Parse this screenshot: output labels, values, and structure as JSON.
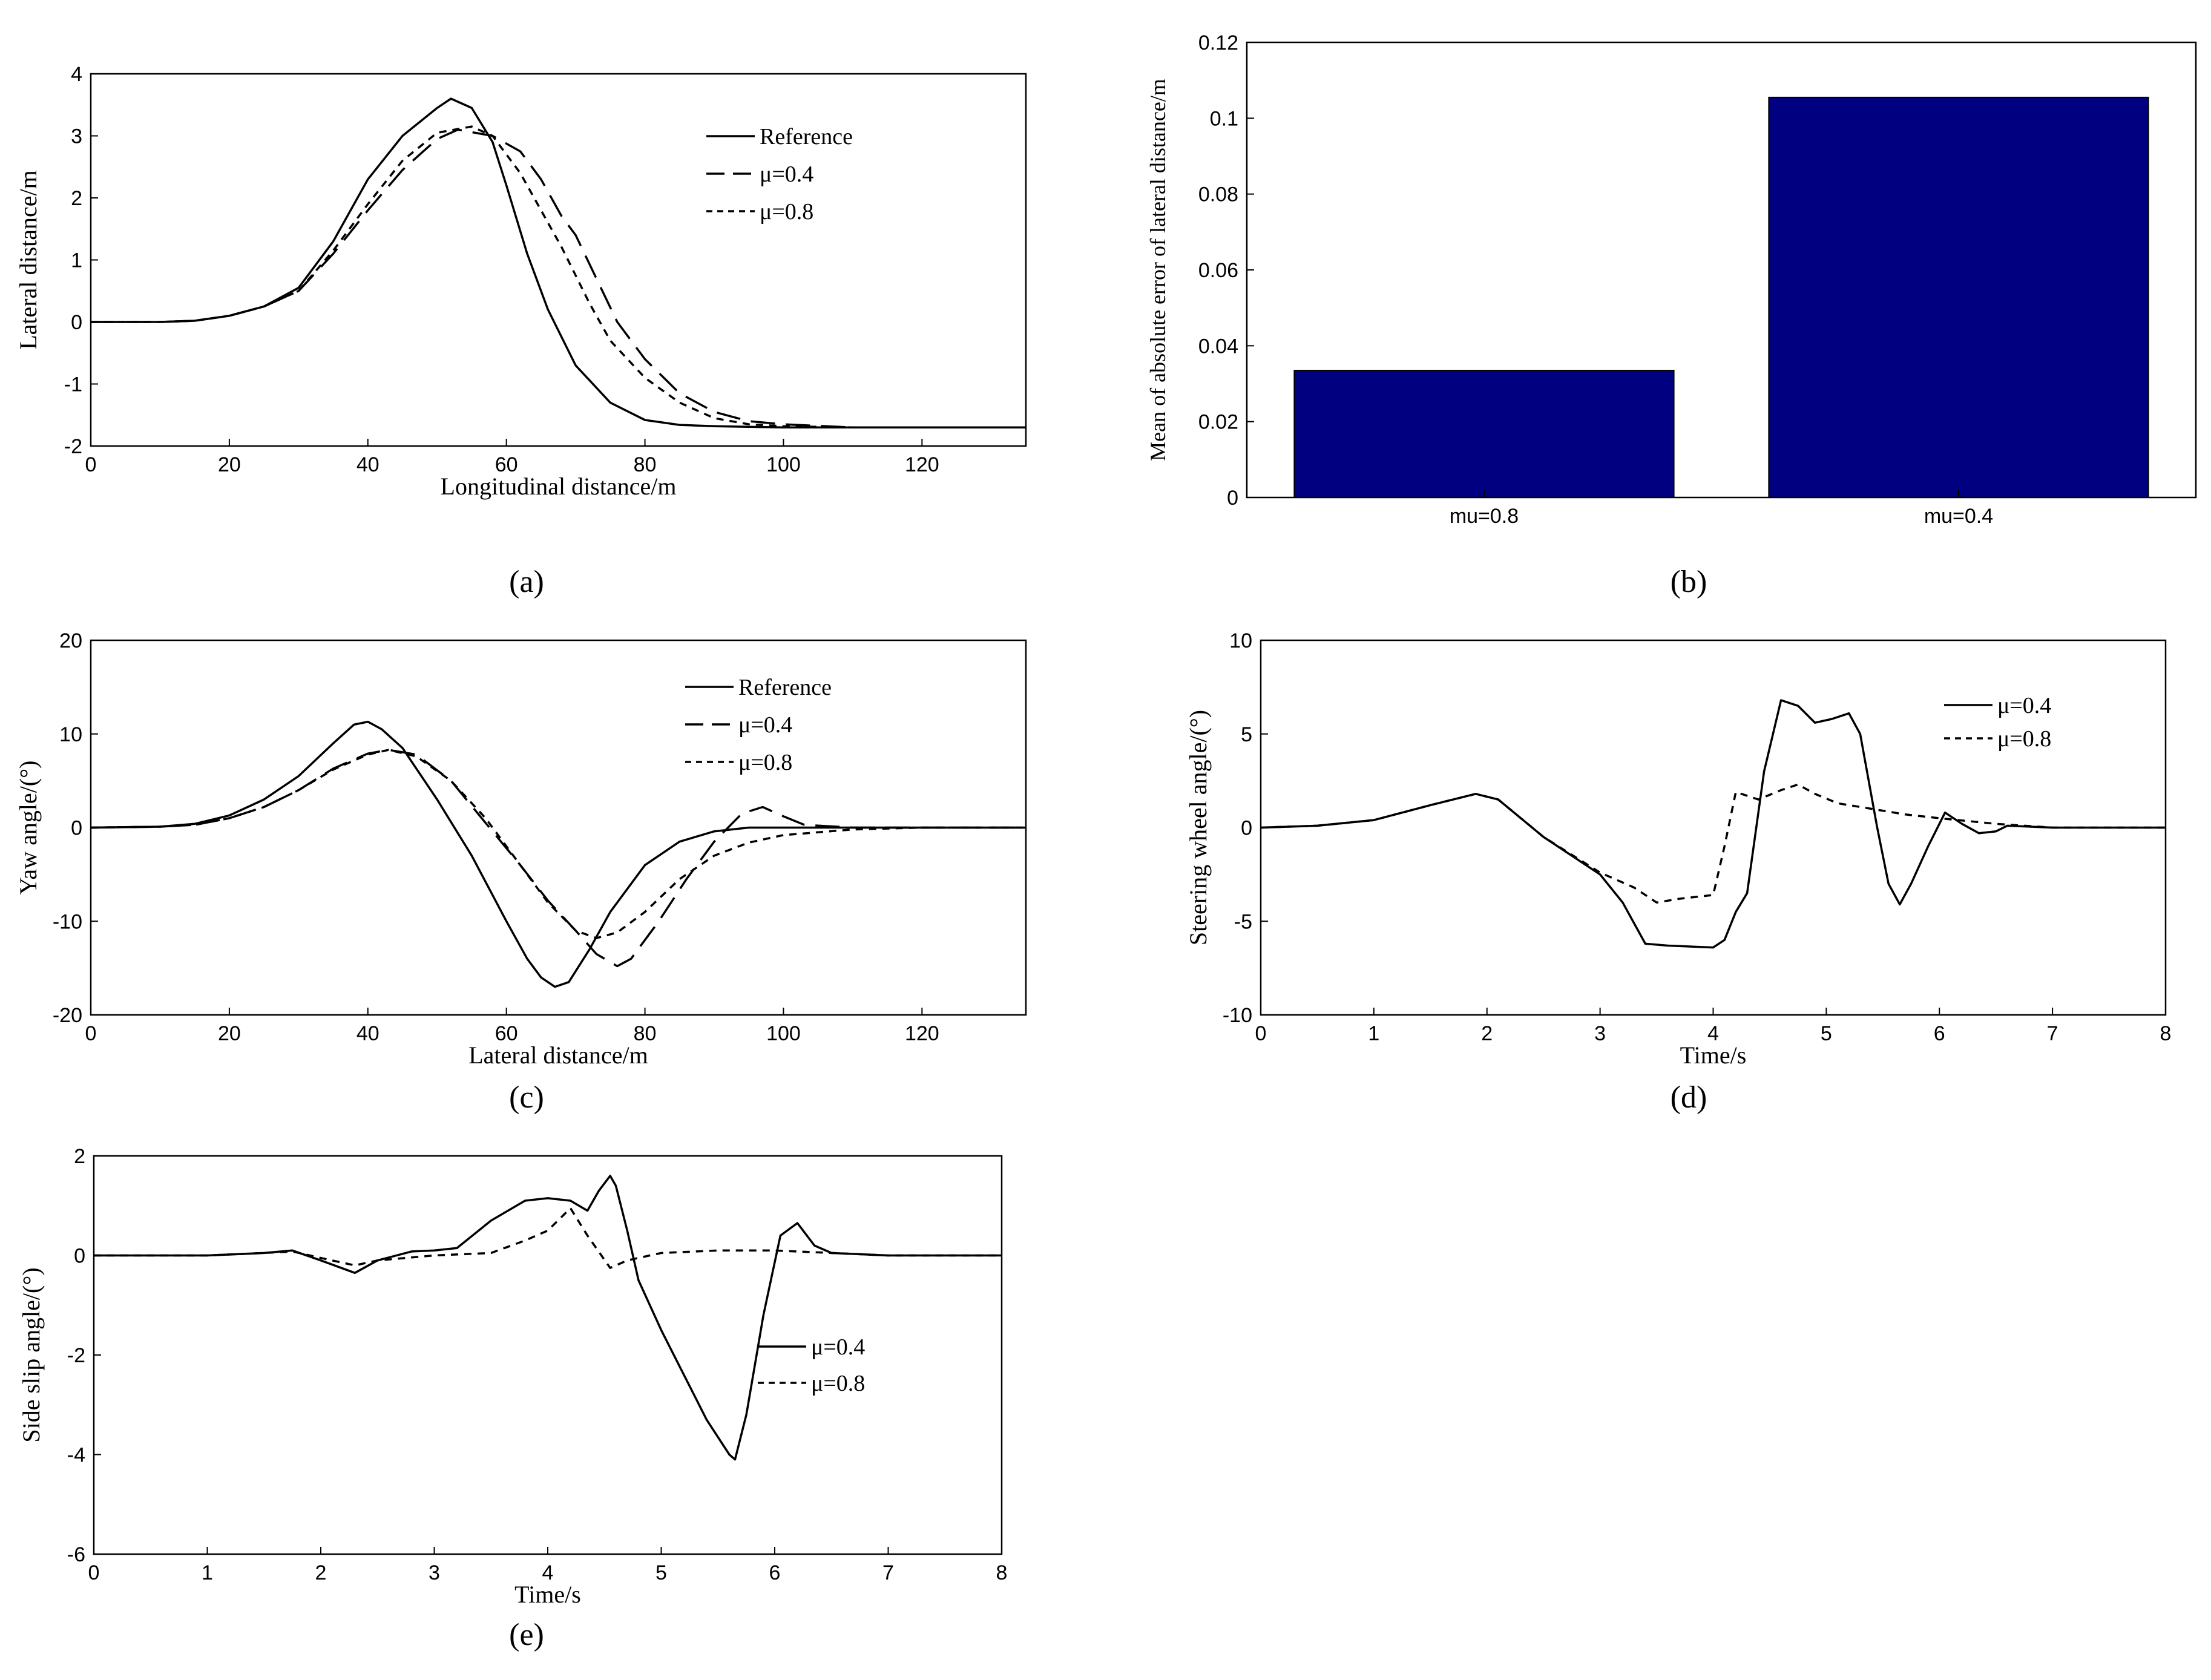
{
  "chart_data": [
    {
      "panel_label": "(a)",
      "type": "line",
      "xlabel": "Longitudinal distance/m",
      "ylabel": "Lateral distance/m",
      "xlim": [
        0,
        135
      ],
      "ylim": [
        -2,
        4
      ],
      "xticks": [
        0,
        20,
        40,
        60,
        80,
        100,
        120
      ],
      "yticks": [
        -2,
        -1,
        0,
        1,
        2,
        3,
        4
      ],
      "legend_position": "top-right",
      "series": [
        {
          "name": "Reference",
          "style": "solid",
          "x": [
            0,
            10,
            15,
            20,
            25,
            30,
            35,
            40,
            45,
            50,
            52,
            55,
            58,
            60,
            63,
            66,
            70,
            75,
            80,
            85,
            90,
            100,
            110,
            135
          ],
          "y": [
            0,
            0,
            0.02,
            0.1,
            0.25,
            0.55,
            1.3,
            2.3,
            3.0,
            3.45,
            3.6,
            3.45,
            2.9,
            2.2,
            1.1,
            0.2,
            -0.7,
            -1.3,
            -1.58,
            -1.66,
            -1.68,
            -1.7,
            -1.7,
            -1.7
          ]
        },
        {
          "name": "μ=0.4",
          "style": "dashed",
          "x": [
            0,
            10,
            15,
            20,
            25,
            30,
            35,
            40,
            45,
            50,
            53,
            58,
            62,
            65,
            68,
            70,
            73,
            76,
            80,
            85,
            90,
            95,
            100,
            110,
            135
          ],
          "y": [
            0,
            0,
            0.02,
            0.1,
            0.25,
            0.5,
            1.1,
            1.8,
            2.45,
            2.95,
            3.1,
            3.0,
            2.75,
            2.3,
            1.7,
            1.4,
            0.7,
            0.0,
            -0.6,
            -1.15,
            -1.45,
            -1.6,
            -1.65,
            -1.7,
            -1.7
          ]
        },
        {
          "name": "μ=0.8",
          "style": "dotted",
          "x": [
            0,
            10,
            15,
            20,
            25,
            30,
            35,
            40,
            45,
            50,
            55,
            58,
            62,
            65,
            68,
            72,
            75,
            80,
            85,
            90,
            95,
            100,
            110,
            135
          ],
          "y": [
            0,
            0,
            0.02,
            0.1,
            0.25,
            0.5,
            1.15,
            1.9,
            2.6,
            3.05,
            3.15,
            3.0,
            2.4,
            1.8,
            1.2,
            0.3,
            -0.3,
            -0.9,
            -1.3,
            -1.55,
            -1.65,
            -1.68,
            -1.7,
            -1.7
          ]
        }
      ]
    },
    {
      "panel_label": "(b)",
      "type": "bar",
      "xlabel": "",
      "ylabel": "Mean of absolute error of lateral distance/m",
      "categories": [
        "mu=0.8",
        "mu=0.4"
      ],
      "values": [
        0.0335,
        0.1055
      ],
      "ylim": [
        0,
        0.12
      ],
      "yticks": [
        0,
        0.02,
        0.04,
        0.06,
        0.08,
        0.1,
        0.12
      ],
      "bar_color": "#000080"
    },
    {
      "panel_label": "(c)",
      "type": "line",
      "xlabel": "Lateral distance/m",
      "ylabel": "Yaw angle/(°)",
      "xlim": [
        0,
        135
      ],
      "ylim": [
        -20,
        20
      ],
      "xticks": [
        0,
        20,
        40,
        60,
        80,
        100,
        120
      ],
      "yticks": [
        -20,
        -10,
        0,
        10,
        20
      ],
      "legend_position": "top-right",
      "series": [
        {
          "name": "Reference",
          "style": "solid",
          "x": [
            0,
            10,
            15,
            20,
            25,
            30,
            35,
            38,
            40,
            42,
            45,
            50,
            55,
            60,
            63,
            65,
            67,
            69,
            72,
            75,
            80,
            85,
            90,
            95,
            100,
            110,
            135
          ],
          "y": [
            0,
            0.1,
            0.4,
            1.3,
            3,
            5.5,
            9,
            11,
            11.3,
            10.5,
            8.5,
            3,
            -3,
            -10,
            -14,
            -16,
            -17,
            -16.5,
            -13,
            -9,
            -4,
            -1.5,
            -0.4,
            0,
            0,
            0,
            0
          ]
        },
        {
          "name": "μ=0.4",
          "style": "dashed",
          "x": [
            0,
            10,
            15,
            20,
            25,
            30,
            35,
            40,
            43,
            47,
            52,
            57,
            62,
            66,
            70,
            73,
            76,
            78,
            82,
            86,
            90,
            94,
            97,
            100,
            103,
            110,
            135
          ],
          "y": [
            0,
            0.1,
            0.3,
            1,
            2.2,
            4,
            6.3,
            7.9,
            8.3,
            7.8,
            5,
            0.5,
            -4,
            -7.8,
            -11,
            -13.5,
            -14.8,
            -14,
            -10,
            -5.5,
            -1.5,
            1.5,
            2.2,
            1.2,
            0.3,
            0,
            0
          ]
        },
        {
          "name": "μ=0.8",
          "style": "dotted",
          "x": [
            0,
            10,
            15,
            20,
            25,
            30,
            35,
            40,
            43,
            47,
            52,
            57,
            62,
            66,
            70,
            73,
            76,
            80,
            85,
            90,
            95,
            100,
            110,
            120,
            135
          ],
          "y": [
            0,
            0.1,
            0.3,
            1,
            2.2,
            4,
            6.2,
            7.8,
            8.3,
            7.6,
            5,
            1,
            -4,
            -8,
            -11,
            -11.8,
            -11.2,
            -9,
            -5.5,
            -3,
            -1.6,
            -0.8,
            -0.2,
            0,
            0
          ]
        }
      ]
    },
    {
      "panel_label": "(d)",
      "type": "line",
      "xlabel": "Time/s",
      "ylabel": "Steering wheel angle/(°)",
      "xlim": [
        0,
        8
      ],
      "ylim": [
        -10,
        10
      ],
      "xticks": [
        0,
        1,
        2,
        3,
        4,
        5,
        6,
        7,
        8
      ],
      "yticks": [
        -10,
        -5,
        0,
        5,
        10
      ],
      "legend_position": "top-right",
      "series": [
        {
          "name": "μ=0.4",
          "style": "solid",
          "x": [
            0,
            0.5,
            1,
            1.5,
            1.9,
            2.1,
            2.5,
            3,
            3.2,
            3.4,
            3.6,
            4,
            4.1,
            4.2,
            4.3,
            4.45,
            4.6,
            4.75,
            4.9,
            5.05,
            5.2,
            5.3,
            5.45,
            5.55,
            5.65,
            5.75,
            5.9,
            6.05,
            6.2,
            6.35,
            6.5,
            6.6,
            7,
            8
          ],
          "y": [
            0,
            0.1,
            0.4,
            1.2,
            1.8,
            1.5,
            -0.5,
            -2.5,
            -4,
            -6.2,
            -6.3,
            -6.4,
            -6,
            -4.5,
            -3.5,
            3,
            6.8,
            6.5,
            5.6,
            5.8,
            6.1,
            5,
            0,
            -3,
            -4.1,
            -3,
            -1,
            0.8,
            0.2,
            -0.3,
            -0.2,
            0.1,
            0,
            0
          ]
        },
        {
          "name": "μ=0.8",
          "style": "dotted",
          "x": [
            0,
            0.5,
            1,
            1.5,
            1.9,
            2.1,
            2.5,
            3,
            3.3,
            3.5,
            3.7,
            4,
            4.1,
            4.2,
            4.4,
            4.6,
            4.75,
            4.9,
            5.1,
            5.4,
            5.7,
            6,
            6.5,
            7,
            8
          ],
          "y": [
            0,
            0.1,
            0.4,
            1.2,
            1.8,
            1.5,
            -0.5,
            -2.4,
            -3.2,
            -4,
            -3.8,
            -3.6,
            -1,
            1.9,
            1.5,
            2,
            2.3,
            1.8,
            1.3,
            1,
            0.7,
            0.5,
            0.2,
            0,
            0
          ]
        }
      ]
    },
    {
      "panel_label": "(e)",
      "type": "line",
      "xlabel": "Time/s",
      "ylabel": "Side slip angle/(°)",
      "xlim": [
        0,
        8
      ],
      "ylim": [
        -6,
        2
      ],
      "xticks": [
        0,
        1,
        2,
        3,
        4,
        5,
        6,
        7,
        8
      ],
      "yticks": [
        -6,
        -4,
        -2,
        0,
        2
      ],
      "legend_position": "right",
      "series": [
        {
          "name": "μ=0.4",
          "style": "solid",
          "x": [
            0,
            1,
            1.5,
            1.75,
            2,
            2.3,
            2.5,
            2.8,
            3,
            3.2,
            3.5,
            3.8,
            4,
            4.2,
            4.35,
            4.45,
            4.55,
            4.6,
            4.7,
            4.8,
            5,
            5.2,
            5.4,
            5.6,
            5.65,
            5.75,
            5.9,
            6.05,
            6.2,
            6.35,
            6.5,
            7,
            8
          ],
          "y": [
            0,
            0,
            0.05,
            0.1,
            -0.1,
            -0.35,
            -0.1,
            0.08,
            0.1,
            0.15,
            0.7,
            1.1,
            1.15,
            1.1,
            0.9,
            1.3,
            1.6,
            1.4,
            0.5,
            -0.5,
            -1.5,
            -2.4,
            -3.3,
            -4.0,
            -4.1,
            -3.2,
            -1.2,
            0.4,
            0.65,
            0.2,
            0.05,
            0,
            0
          ]
        },
        {
          "name": "μ=0.8",
          "style": "dotted",
          "x": [
            0,
            1,
            1.5,
            1.75,
            2,
            2.3,
            2.5,
            3,
            3.5,
            3.8,
            4,
            4.2,
            4.35,
            4.55,
            4.7,
            5,
            5.5,
            6,
            6.5,
            7,
            8
          ],
          "y": [
            0,
            0,
            0.05,
            0.08,
            -0.05,
            -0.2,
            -0.1,
            0,
            0.05,
            0.3,
            0.5,
            0.95,
            0.4,
            -0.25,
            -0.1,
            0.05,
            0.1,
            0.1,
            0.05,
            0,
            0
          ]
        }
      ]
    }
  ]
}
